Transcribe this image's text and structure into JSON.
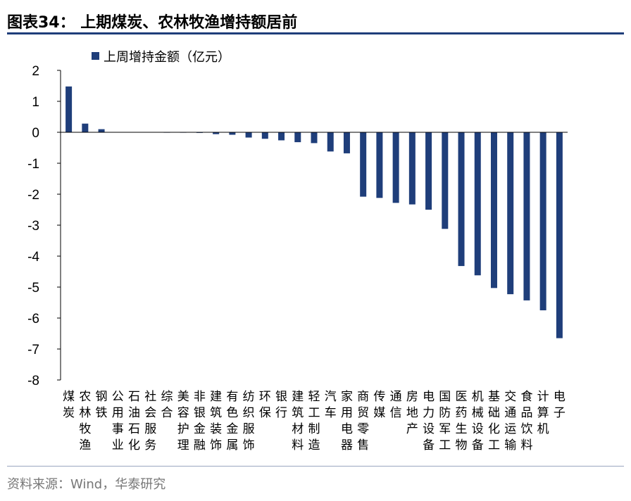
{
  "title": "图表34：  上期煤炭、农林牧渔增持额居前",
  "source": "资料来源：Wind，华泰研究",
  "colors": {
    "bar": "#1f3e7a",
    "axis": "#000000",
    "rule": "#1f3e7a"
  },
  "chart_data": {
    "type": "bar",
    "title": "",
    "xlabel": "",
    "ylabel": "",
    "ylim": [
      -8,
      2
    ],
    "yticks": [
      2,
      1,
      0,
      -1,
      -2,
      -3,
      -4,
      -5,
      -6,
      -7,
      -8
    ],
    "grid": false,
    "legend_position": "top-left",
    "categories": [
      "煤炭",
      "农林牧渔",
      "钢铁",
      "公用事业",
      "石油石化",
      "社会服务",
      "综合",
      "美容护理",
      "非银金融",
      "建筑装饰",
      "有色金属",
      "纺织服饰",
      "环保",
      "银行",
      "建筑材料",
      "轻工制造",
      "汽车",
      "家用电器",
      "商贸零售",
      "传媒",
      "通信",
      "房地产",
      "电力设备",
      "国防军工",
      "医药生物",
      "机械设备",
      "基础化工",
      "交通运输",
      "食品饮料",
      "计算机",
      "电子"
    ],
    "series": [
      {
        "name": "上周增持金额（亿元）",
        "values": [
          1.48,
          0.28,
          0.1,
          0.01,
          0.01,
          0.01,
          -0.01,
          -0.01,
          -0.02,
          -0.06,
          -0.08,
          -0.17,
          -0.21,
          -0.26,
          -0.32,
          -0.35,
          -0.62,
          -0.68,
          -2.08,
          -2.12,
          -2.28,
          -2.33,
          -2.5,
          -3.12,
          -4.32,
          -4.62,
          -5.03,
          -5.23,
          -5.43,
          -5.75,
          -6.65
        ]
      }
    ]
  }
}
